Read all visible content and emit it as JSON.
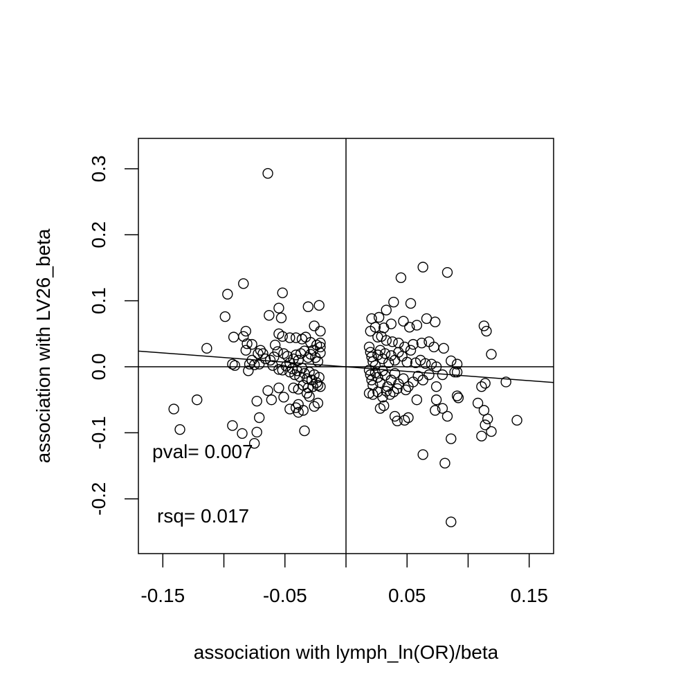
{
  "chart_data": {
    "type": "scatter",
    "title": "",
    "xlabel": "association with lymph_ln(OR)/beta",
    "ylabel": "association with LV26_beta",
    "xlim": [
      -0.17,
      0.17
    ],
    "ylim": [
      -0.283,
      0.346
    ],
    "x_ticks": [
      -0.15,
      -0.1,
      -0.05,
      0,
      0.05,
      0.1,
      0.15
    ],
    "x_tick_labels": [
      "-0.15",
      "",
      "-0.05",
      "",
      "0.05",
      "",
      "0.15"
    ],
    "y_ticks": [
      -0.2,
      -0.1,
      0,
      0.1,
      0.2,
      0.3
    ],
    "y_tick_labels": [
      "-0.2",
      "-0.1",
      "0.0",
      "0.1",
      "0.2",
      "0.3"
    ],
    "grid": false,
    "legend": "none",
    "reference_lines": {
      "vertical_x": 0,
      "horizontal_y": 0
    },
    "fit_line": {
      "intercept": 0.0,
      "slope": -0.14
    },
    "annotations": [
      "pval= 0.007",
      "rsq= 0.017"
    ],
    "series": [
      {
        "points": [
          [
            -0.064,
            0.293
          ],
          [
            -0.084,
            0.126
          ],
          [
            -0.052,
            0.112
          ],
          [
            -0.097,
            0.11
          ],
          [
            -0.099,
            0.076
          ],
          [
            -0.055,
            0.089
          ],
          [
            -0.031,
            0.091
          ],
          [
            -0.022,
            0.093
          ],
          [
            -0.053,
            0.074
          ],
          [
            -0.063,
            0.078
          ],
          [
            -0.026,
            0.062
          ],
          [
            -0.021,
            0.054
          ],
          [
            -0.082,
            0.054
          ],
          [
            -0.092,
            0.045
          ],
          [
            -0.084,
            0.046
          ],
          [
            -0.114,
            0.028
          ],
          [
            -0.081,
            0.035
          ],
          [
            -0.077,
            0.034
          ],
          [
            -0.058,
            0.033
          ],
          [
            -0.055,
            0.05
          ],
          [
            -0.052,
            0.046
          ],
          [
            -0.046,
            0.044
          ],
          [
            -0.041,
            0.044
          ],
          [
            -0.036,
            0.042
          ],
          [
            -0.033,
            0.045
          ],
          [
            -0.029,
            0.037
          ],
          [
            -0.021,
            0.036
          ],
          [
            -0.082,
            0.025
          ],
          [
            -0.077,
            0.01
          ],
          [
            -0.072,
            0.02
          ],
          [
            -0.07,
            0.025
          ],
          [
            -0.068,
            0.02
          ],
          [
            -0.066,
            0.012
          ],
          [
            -0.062,
            0.01
          ],
          [
            -0.059,
            0.015
          ],
          [
            -0.056,
            0.023
          ],
          [
            -0.051,
            0.02
          ],
          [
            -0.048,
            0.016
          ],
          [
            -0.046,
            0.006
          ],
          [
            -0.043,
            0.012
          ],
          [
            -0.041,
            0.018
          ],
          [
            -0.039,
            0.01
          ],
          [
            -0.037,
            0.02
          ],
          [
            -0.034,
            0.024
          ],
          [
            -0.031,
            0.014
          ],
          [
            -0.029,
            0.019
          ],
          [
            -0.027,
            0.025
          ],
          [
            -0.025,
            0.014
          ],
          [
            -0.023,
            0.008
          ],
          [
            -0.021,
            0.021
          ],
          [
            -0.021,
            0.03
          ],
          [
            -0.024,
            0.033
          ],
          [
            -0.093,
            0.004
          ],
          [
            -0.091,
            0.002
          ],
          [
            -0.079,
            0.004
          ],
          [
            -0.075,
            0.003
          ],
          [
            -0.071,
            0.004
          ],
          [
            -0.08,
            -0.006
          ],
          [
            -0.06,
            0.002
          ],
          [
            -0.055,
            -0.004
          ],
          [
            -0.052,
            -0.005
          ],
          [
            -0.049,
            0.001
          ],
          [
            -0.046,
            -0.008
          ],
          [
            -0.044,
            -0.003
          ],
          [
            -0.042,
            -0.012
          ],
          [
            -0.04,
            -0.006
          ],
          [
            -0.038,
            -0.015
          ],
          [
            -0.036,
            -0.002
          ],
          [
            -0.034,
            -0.01
          ],
          [
            -0.032,
            -0.018
          ],
          [
            -0.03,
            -0.008
          ],
          [
            -0.028,
            -0.02
          ],
          [
            -0.026,
            -0.012
          ],
          [
            -0.024,
            -0.024
          ],
          [
            -0.022,
            -0.016
          ],
          [
            -0.021,
            -0.03
          ],
          [
            -0.023,
            -0.028
          ],
          [
            -0.027,
            -0.03
          ],
          [
            -0.031,
            -0.032
          ],
          [
            -0.035,
            -0.028
          ],
          [
            -0.039,
            -0.034
          ],
          [
            -0.043,
            -0.032
          ],
          [
            -0.055,
            -0.032
          ],
          [
            -0.064,
            -0.036
          ],
          [
            -0.061,
            -0.05
          ],
          [
            -0.073,
            -0.052
          ],
          [
            -0.051,
            -0.046
          ],
          [
            -0.046,
            -0.064
          ],
          [
            -0.041,
            -0.062
          ],
          [
            -0.039,
            -0.057
          ],
          [
            -0.039,
            -0.069
          ],
          [
            -0.035,
            -0.066
          ],
          [
            -0.032,
            -0.04
          ],
          [
            -0.03,
            -0.045
          ],
          [
            -0.026,
            -0.06
          ],
          [
            -0.023,
            -0.055
          ],
          [
            -0.071,
            -0.077
          ],
          [
            -0.093,
            -0.089
          ],
          [
            -0.085,
            -0.101
          ],
          [
            -0.073,
            -0.099
          ],
          [
            -0.075,
            -0.116
          ],
          [
            -0.034,
            -0.097
          ],
          [
            -0.136,
            -0.095
          ],
          [
            -0.141,
            -0.064
          ],
          [
            -0.122,
            -0.05
          ],
          [
            0.063,
            0.151
          ],
          [
            0.083,
            0.143
          ],
          [
            0.045,
            0.135
          ],
          [
            0.039,
            0.098
          ],
          [
            0.053,
            0.096
          ],
          [
            0.033,
            0.086
          ],
          [
            0.021,
            0.073
          ],
          [
            0.027,
            0.075
          ],
          [
            0.047,
            0.069
          ],
          [
            0.066,
            0.073
          ],
          [
            0.073,
            0.068
          ],
          [
            0.113,
            0.062
          ],
          [
            0.115,
            0.054
          ],
          [
            0.037,
            0.065
          ],
          [
            0.024,
            0.06
          ],
          [
            0.031,
            0.059
          ],
          [
            0.052,
            0.06
          ],
          [
            0.058,
            0.063
          ],
          [
            0.02,
            0.054
          ],
          [
            0.026,
            0.045
          ],
          [
            0.029,
            0.046
          ],
          [
            0.033,
            0.04
          ],
          [
            0.038,
            0.038
          ],
          [
            0.043,
            0.036
          ],
          [
            0.048,
            0.03
          ],
          [
            0.055,
            0.034
          ],
          [
            0.062,
            0.036
          ],
          [
            0.068,
            0.038
          ],
          [
            0.072,
            0.03
          ],
          [
            0.08,
            0.028
          ],
          [
            0.119,
            0.019
          ],
          [
            0.019,
            0.03
          ],
          [
            0.02,
            0.022
          ],
          [
            0.021,
            0.015
          ],
          [
            0.022,
            0.008
          ],
          [
            0.024,
            0.002
          ],
          [
            0.026,
            0.018
          ],
          [
            0.028,
            0.025
          ],
          [
            0.03,
            0.012
          ],
          [
            0.032,
            0.02
          ],
          [
            0.035,
            0.006
          ],
          [
            0.037,
            0.017
          ],
          [
            0.04,
            0.01
          ],
          [
            0.043,
            0.022
          ],
          [
            0.046,
            0.016
          ],
          [
            0.05,
            0.007
          ],
          [
            0.053,
            0.025
          ],
          [
            0.057,
            0.006
          ],
          [
            0.061,
            0.01
          ],
          [
            0.065,
            0.005
          ],
          [
            0.07,
            0.004
          ],
          [
            0.074,
            0.0
          ],
          [
            0.086,
            0.009
          ],
          [
            0.091,
            0.004
          ],
          [
            0.089,
            -0.008
          ],
          [
            0.091,
            -0.008
          ],
          [
            0.019,
            -0.005
          ],
          [
            0.02,
            -0.012
          ],
          [
            0.021,
            -0.02
          ],
          [
            0.022,
            -0.028
          ],
          [
            0.024,
            -0.009
          ],
          [
            0.026,
            -0.016
          ],
          [
            0.028,
            -0.024
          ],
          [
            0.03,
            -0.006
          ],
          [
            0.032,
            -0.013
          ],
          [
            0.034,
            -0.03
          ],
          [
            0.037,
            -0.02
          ],
          [
            0.04,
            -0.01
          ],
          [
            0.043,
            -0.026
          ],
          [
            0.047,
            -0.018
          ],
          [
            0.051,
            -0.03
          ],
          [
            0.055,
            -0.023
          ],
          [
            0.059,
            -0.014
          ],
          [
            0.063,
            -0.02
          ],
          [
            0.068,
            -0.012
          ],
          [
            0.079,
            -0.012
          ],
          [
            0.019,
            -0.04
          ],
          [
            0.022,
            -0.042
          ],
          [
            0.026,
            -0.038
          ],
          [
            0.03,
            -0.046
          ],
          [
            0.033,
            -0.037
          ],
          [
            0.036,
            -0.042
          ],
          [
            0.039,
            -0.038
          ],
          [
            0.042,
            -0.033
          ],
          [
            0.049,
            -0.035
          ],
          [
            0.058,
            -0.05
          ],
          [
            0.074,
            -0.03
          ],
          [
            0.074,
            -0.05
          ],
          [
            0.091,
            -0.044
          ],
          [
            0.092,
            -0.047
          ],
          [
            0.108,
            -0.055
          ],
          [
            0.111,
            -0.03
          ],
          [
            0.114,
            -0.025
          ],
          [
            0.131,
            -0.023
          ],
          [
            0.113,
            -0.066
          ],
          [
            0.028,
            -0.063
          ],
          [
            0.031,
            -0.059
          ],
          [
            0.04,
            -0.075
          ],
          [
            0.042,
            -0.082
          ],
          [
            0.048,
            -0.081
          ],
          [
            0.051,
            -0.077
          ],
          [
            0.073,
            -0.066
          ],
          [
            0.079,
            -0.063
          ],
          [
            0.083,
            -0.075
          ],
          [
            0.116,
            -0.079
          ],
          [
            0.114,
            -0.088
          ],
          [
            0.119,
            -0.098
          ],
          [
            0.111,
            -0.105
          ],
          [
            0.14,
            -0.081
          ],
          [
            0.086,
            -0.109
          ],
          [
            0.063,
            -0.133
          ],
          [
            0.081,
            -0.146
          ],
          [
            0.086,
            -0.235
          ]
        ]
      }
    ]
  }
}
